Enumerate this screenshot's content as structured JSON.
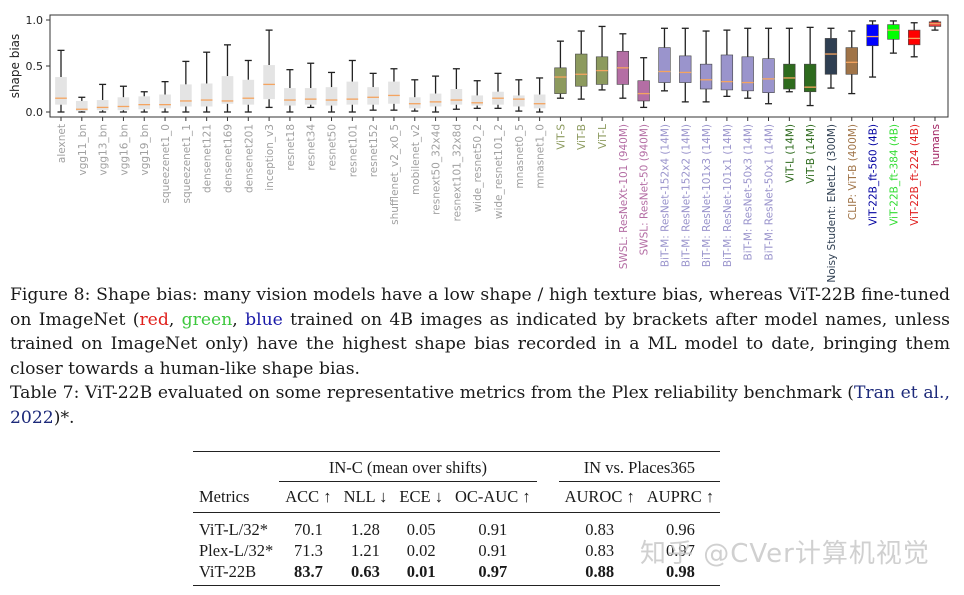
{
  "chart_data": {
    "type": "boxplot",
    "ylabel": "shape bias",
    "xlabel": "",
    "ylim": [
      0.0,
      1.0
    ],
    "yticks": [
      "0.0",
      "0.5",
      "1.0"
    ],
    "ytick_values": [
      0.0,
      0.5,
      1.0
    ],
    "grid": false,
    "median_color": "#f4a460",
    "models": [
      {
        "name": "alexnet",
        "color": "#e4e4e4",
        "label_color": "#a0a0a0",
        "min": 0.0,
        "q1": 0.08,
        "median": 0.15,
        "q3": 0.38,
        "max": 0.67
      },
      {
        "name": "vgg11_bn",
        "color": "#e4e4e4",
        "label_color": "#a0a0a0",
        "min": 0.0,
        "q1": 0.01,
        "median": 0.03,
        "q3": 0.12,
        "max": 0.16
      },
      {
        "name": "vgg13_bn",
        "color": "#e4e4e4",
        "label_color": "#a0a0a0",
        "min": 0.0,
        "q1": 0.02,
        "median": 0.05,
        "q3": 0.13,
        "max": 0.3
      },
      {
        "name": "vgg16_bn",
        "color": "#e4e4e4",
        "label_color": "#a0a0a0",
        "min": 0.0,
        "q1": 0.02,
        "median": 0.06,
        "q3": 0.16,
        "max": 0.28
      },
      {
        "name": "vgg19_bn",
        "color": "#e4e4e4",
        "label_color": "#a0a0a0",
        "min": 0.0,
        "q1": 0.03,
        "median": 0.08,
        "q3": 0.17,
        "max": 0.22
      },
      {
        "name": "squeezenet1_0",
        "color": "#e4e4e4",
        "label_color": "#a0a0a0",
        "min": 0.0,
        "q1": 0.04,
        "median": 0.08,
        "q3": 0.19,
        "max": 0.33
      },
      {
        "name": "squeezenet1_1",
        "color": "#e4e4e4",
        "label_color": "#a0a0a0",
        "min": 0.0,
        "q1": 0.06,
        "median": 0.12,
        "q3": 0.3,
        "max": 0.55
      },
      {
        "name": "densenet121",
        "color": "#e4e4e4",
        "label_color": "#a0a0a0",
        "min": 0.0,
        "q1": 0.06,
        "median": 0.13,
        "q3": 0.31,
        "max": 0.65
      },
      {
        "name": "densenet169",
        "color": "#e4e4e4",
        "label_color": "#a0a0a0",
        "min": 0.0,
        "q1": 0.09,
        "median": 0.12,
        "q3": 0.39,
        "max": 0.73
      },
      {
        "name": "densenet201",
        "color": "#e4e4e4",
        "label_color": "#a0a0a0",
        "min": 0.0,
        "q1": 0.08,
        "median": 0.15,
        "q3": 0.35,
        "max": 0.56
      },
      {
        "name": "inception_v3",
        "color": "#e4e4e4",
        "label_color": "#a0a0a0",
        "min": 0.05,
        "q1": 0.14,
        "median": 0.3,
        "q3": 0.51,
        "max": 0.89
      },
      {
        "name": "resnet18",
        "color": "#e4e4e4",
        "label_color": "#a0a0a0",
        "min": 0.0,
        "q1": 0.07,
        "median": 0.13,
        "q3": 0.26,
        "max": 0.46
      },
      {
        "name": "resnet34",
        "color": "#e4e4e4",
        "label_color": "#a0a0a0",
        "min": 0.05,
        "q1": 0.08,
        "median": 0.14,
        "q3": 0.26,
        "max": 0.53
      },
      {
        "name": "resnet50",
        "color": "#e4e4e4",
        "label_color": "#a0a0a0",
        "min": 0.0,
        "q1": 0.07,
        "median": 0.13,
        "q3": 0.27,
        "max": 0.43
      },
      {
        "name": "resnet101",
        "color": "#e4e4e4",
        "label_color": "#a0a0a0",
        "min": 0.0,
        "q1": 0.08,
        "median": 0.14,
        "q3": 0.33,
        "max": 0.56
      },
      {
        "name": "resnet152",
        "color": "#e4e4e4",
        "label_color": "#a0a0a0",
        "min": 0.02,
        "q1": 0.08,
        "median": 0.16,
        "q3": 0.27,
        "max": 0.42
      },
      {
        "name": "shufflenet_v2_x0_5",
        "color": "#e4e4e4",
        "label_color": "#a0a0a0",
        "min": 0.02,
        "q1": 0.09,
        "median": 0.18,
        "q3": 0.33,
        "max": 0.47
      },
      {
        "name": "mobilenet_v2",
        "color": "#e4e4e4",
        "label_color": "#a0a0a0",
        "min": 0.01,
        "q1": 0.04,
        "median": 0.09,
        "q3": 0.16,
        "max": 0.35
      },
      {
        "name": "resnext50_32x4d",
        "color": "#e4e4e4",
        "label_color": "#a0a0a0",
        "min": 0.0,
        "q1": 0.06,
        "median": 0.11,
        "q3": 0.2,
        "max": 0.39
      },
      {
        "name": "resnext101_32x8d",
        "color": "#e4e4e4",
        "label_color": "#a0a0a0",
        "min": 0.03,
        "q1": 0.08,
        "median": 0.13,
        "q3": 0.25,
        "max": 0.47
      },
      {
        "name": "wide_resnet50_2",
        "color": "#e4e4e4",
        "label_color": "#a0a0a0",
        "min": 0.04,
        "q1": 0.07,
        "median": 0.1,
        "q3": 0.18,
        "max": 0.34
      },
      {
        "name": "wide_resnet101_2",
        "color": "#e4e4e4",
        "label_color": "#a0a0a0",
        "min": 0.04,
        "q1": 0.08,
        "median": 0.15,
        "q3": 0.22,
        "max": 0.42
      },
      {
        "name": "mnasnet0_5",
        "color": "#e4e4e4",
        "label_color": "#a0a0a0",
        "min": 0.01,
        "q1": 0.06,
        "median": 0.14,
        "q3": 0.18,
        "max": 0.35
      },
      {
        "name": "mnasnet1_0",
        "color": "#e4e4e4",
        "label_color": "#a0a0a0",
        "min": 0.0,
        "q1": 0.04,
        "median": 0.09,
        "q3": 0.19,
        "max": 0.37
      },
      {
        "name": "ViT-S",
        "color": "#8c9a5e",
        "label_color": "#8c9a5e",
        "min": 0.15,
        "q1": 0.2,
        "median": 0.38,
        "q3": 0.48,
        "max": 0.77
      },
      {
        "name": "ViT-B",
        "color": "#8c9a5e",
        "label_color": "#8c9a5e",
        "min": 0.14,
        "q1": 0.28,
        "median": 0.41,
        "q3": 0.63,
        "max": 0.88
      },
      {
        "name": "ViT-L",
        "color": "#8c9a5e",
        "label_color": "#8c9a5e",
        "min": 0.24,
        "q1": 0.3,
        "median": 0.45,
        "q3": 0.6,
        "max": 0.93
      },
      {
        "name": "SWSL: ResNeXt-101 (940M)",
        "color": "#b46ea4",
        "label_color": "#b46ea4",
        "min": 0.15,
        "q1": 0.3,
        "median": 0.48,
        "q3": 0.66,
        "max": 0.85
      },
      {
        "name": "SWSL: ResNet-50 (940M)",
        "color": "#b46ea4",
        "label_color": "#b46ea4",
        "min": 0.05,
        "q1": 0.12,
        "median": 0.2,
        "q3": 0.34,
        "max": 0.59
      },
      {
        "name": "BiT-M: ResNet-152x4 (14M)",
        "color": "#9a94cc",
        "label_color": "#9a94cc",
        "min": 0.23,
        "q1": 0.32,
        "median": 0.44,
        "q3": 0.7,
        "max": 0.91
      },
      {
        "name": "BiT-M: ResNet-152x2 (14M)",
        "color": "#9a94cc",
        "label_color": "#9a94cc",
        "min": 0.11,
        "q1": 0.32,
        "median": 0.43,
        "q3": 0.61,
        "max": 0.91
      },
      {
        "name": "BiT-M: ResNet-101x3 (14M)",
        "color": "#9a94cc",
        "label_color": "#9a94cc",
        "min": 0.11,
        "q1": 0.25,
        "median": 0.35,
        "q3": 0.52,
        "max": 0.88
      },
      {
        "name": "BiT-M: ResNet-101x1 (14M)",
        "color": "#9a94cc",
        "label_color": "#9a94cc",
        "min": 0.17,
        "q1": 0.24,
        "median": 0.33,
        "q3": 0.62,
        "max": 0.89
      },
      {
        "name": "BiT-M: ResNet-50x3 (14M)",
        "color": "#9a94cc",
        "label_color": "#9a94cc",
        "min": 0.15,
        "q1": 0.23,
        "median": 0.32,
        "q3": 0.6,
        "max": 0.91
      },
      {
        "name": "BiT-M: ResNet-50x1 (14M)",
        "color": "#9a94cc",
        "label_color": "#9a94cc",
        "min": 0.09,
        "q1": 0.21,
        "median": 0.36,
        "q3": 0.58,
        "max": 0.91
      },
      {
        "name": "ViT-L (14M)",
        "color": "#2e6b1e",
        "label_color": "#2e6b1e",
        "min": 0.22,
        "q1": 0.25,
        "median": 0.37,
        "q3": 0.52,
        "max": 0.91
      },
      {
        "name": "ViT-B (14M)",
        "color": "#2e6b1e",
        "label_color": "#2e6b1e",
        "min": 0.07,
        "q1": 0.22,
        "median": 0.27,
        "q3": 0.52,
        "max": 0.92
      },
      {
        "name": "Noisy Student: ENetL2 (300M)",
        "color": "#2f3f52",
        "label_color": "#2f3f52",
        "min": 0.26,
        "q1": 0.41,
        "median": 0.63,
        "q3": 0.8,
        "max": 0.91
      },
      {
        "name": "CLIP: ViT-B (400M)",
        "color": "#a07448",
        "label_color": "#a07448",
        "min": 0.2,
        "q1": 0.41,
        "median": 0.54,
        "q3": 0.7,
        "max": 0.88
      },
      {
        "name": "ViT-22B_ft-560 (4B)",
        "color": "#0000ff",
        "label_color": "#0000a0",
        "min": 0.38,
        "q1": 0.72,
        "median": 0.82,
        "q3": 0.95,
        "max": 0.99
      },
      {
        "name": "ViT-22B_ft-384 (4B)",
        "color": "#00ff00",
        "label_color": "#33dd33",
        "min": 0.64,
        "q1": 0.79,
        "median": 0.89,
        "q3": 0.95,
        "max": 0.99
      },
      {
        "name": "ViT-22B_ft-224 (4B)",
        "color": "#ff0000",
        "label_color": "#e02020",
        "min": 0.6,
        "q1": 0.73,
        "median": 0.8,
        "q3": 0.89,
        "max": 0.97
      },
      {
        "name": "humans",
        "color": "#e04040",
        "label_color": "#a02060",
        "min": 0.89,
        "q1": 0.93,
        "median": 0.96,
        "q3": 0.98,
        "max": 0.99
      }
    ]
  },
  "figure_caption": {
    "label": "Figure 8:",
    "part1": " Shape bias: many vision models have a low shape / high texture bias, whereas ViT-22B fine-tuned on ImageNet (",
    "red": "red",
    "sep1": ", ",
    "green": "green",
    "sep2": ", ",
    "blue": "blue",
    "part2": " trained on 4B images as indicated by brackets after model names, unless trained on ImageNet only) have the highest shape bias recorded in a ML model to date, bringing them closer towards a human-like shape bias."
  },
  "table_caption": {
    "label": "Table 7:",
    "text": " ViT-22B evaluated on some representative metrics from the Plex reliability benchmark (",
    "cite": "Tran et al., 2022",
    "tail": ")*."
  },
  "table": {
    "group_headers": [
      "IN-C (mean over shifts)",
      "IN vs. Places365"
    ],
    "columns": [
      "Metrics",
      "ACC ↑",
      "NLL ↓",
      "ECE ↓",
      "OC-AUC ↑",
      "AUROC ↑",
      "AUPRC ↑"
    ],
    "rows": [
      {
        "name": "ViT-L/32*",
        "values": [
          "70.1",
          "1.28",
          "0.05",
          "0.91",
          "0.83",
          "0.96"
        ],
        "bold": false
      },
      {
        "name": "Plex-L/32*",
        "values": [
          "71.3",
          "1.21",
          "0.02",
          "0.91",
          "0.83",
          "0.97"
        ],
        "bold": false
      },
      {
        "name": "ViT-22B",
        "values": [
          "83.7",
          "0.63",
          "0.01",
          "0.97",
          "0.88",
          "0.98"
        ],
        "bold": true
      }
    ]
  },
  "watermark": "知乎 @CVer计算机视觉"
}
